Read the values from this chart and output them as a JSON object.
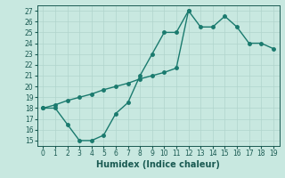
{
  "xlabel": "Humidex (Indice chaleur)",
  "xlim": [
    -0.5,
    19.5
  ],
  "ylim": [
    14.5,
    27.5
  ],
  "yticks": [
    15,
    16,
    17,
    18,
    19,
    20,
    21,
    22,
    23,
    24,
    25,
    26,
    27
  ],
  "xticks": [
    0,
    1,
    2,
    3,
    4,
    5,
    6,
    7,
    8,
    9,
    10,
    11,
    12,
    13,
    14,
    15,
    16,
    17,
    18,
    19
  ],
  "line1_x": [
    0,
    1,
    2,
    3,
    4,
    5,
    6,
    7,
    8,
    9,
    10,
    11,
    12
  ],
  "line1_y": [
    18,
    18,
    16.5,
    15,
    15,
    15.5,
    17.5,
    18.5,
    21,
    23,
    25,
    25,
    27
  ],
  "line2_x": [
    0,
    1,
    2,
    3,
    4,
    5,
    6,
    7,
    8,
    9,
    10,
    11,
    12,
    13,
    14,
    15,
    16,
    17,
    18,
    19
  ],
  "line2_y": [
    18,
    18.3,
    18.7,
    19.0,
    19.3,
    19.7,
    20.0,
    20.3,
    20.7,
    21.0,
    21.3,
    21.7,
    27,
    25.5,
    25.5,
    26.5,
    25.5,
    24,
    24,
    23.5
  ],
  "line_color": "#1a7a6e",
  "marker": "o",
  "marker_size": 2.5,
  "bg_color": "#c8e8e0",
  "grid_color": "#b0d4cc",
  "font_color": "#1a5a52",
  "tick_fontsize": 5.5,
  "label_fontsize": 7
}
